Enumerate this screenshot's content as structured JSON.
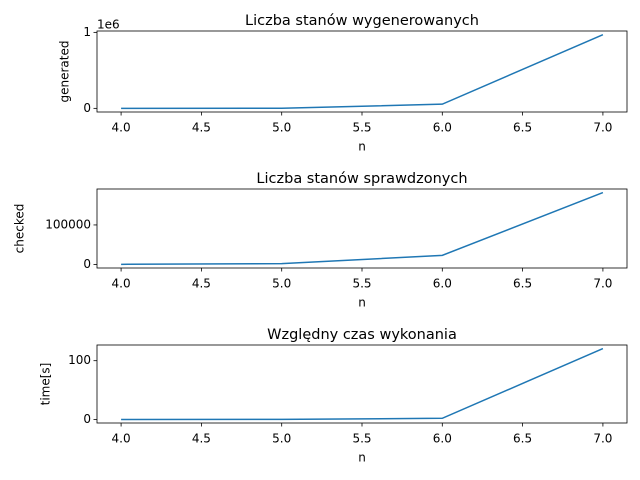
{
  "chart_data": [
    {
      "type": "line",
      "title": "Liczba stanów wygenerowanych",
      "xlabel": "n",
      "ylabel": "generated",
      "y_offset_label": "1e6",
      "x": [
        4,
        5,
        6,
        7
      ],
      "series": [
        {
          "color": "#1f77b4",
          "values": [
            100,
            1000,
            55000,
            970000
          ]
        }
      ],
      "xlim": [
        3.85,
        7.15
      ],
      "ylim": [
        -48000,
        1018000
      ],
      "xticks": [
        {
          "value": 4,
          "label": "4.0"
        },
        4.5,
        {
          "value": 5,
          "label": "5.0"
        },
        5.5,
        {
          "value": 6,
          "label": "6.0"
        },
        6.5,
        {
          "value": 7,
          "label": "7.0"
        }
      ],
      "yticks": [
        0,
        {
          "value": 1000000,
          "label": "1"
        }
      ]
    },
    {
      "type": "line",
      "title": "Liczba stanów sprawdzonych",
      "xlabel": "n",
      "ylabel": "checked",
      "x": [
        4,
        5,
        6,
        7
      ],
      "series": [
        {
          "color": "#1f77b4",
          "values": [
            300,
            2000,
            23000,
            182000
          ]
        }
      ],
      "xlim": [
        3.85,
        7.15
      ],
      "ylim": [
        -9000,
        191000
      ],
      "xticks": [
        {
          "value": 4,
          "label": "4.0"
        },
        4.5,
        {
          "value": 5,
          "label": "5.0"
        },
        5.5,
        {
          "value": 6,
          "label": "6.0"
        },
        6.5,
        {
          "value": 7,
          "label": "7.0"
        }
      ],
      "yticks": [
        0,
        100000
      ]
    },
    {
      "type": "line",
      "title": "Względny czas wykonania",
      "xlabel": "n",
      "ylabel": "time[s]",
      "x": [
        4,
        5,
        6,
        7
      ],
      "series": [
        {
          "color": "#1f77b4",
          "values": [
            0.01,
            0.2,
            2,
            120.7
          ]
        }
      ],
      "xlim": [
        3.85,
        7.15
      ],
      "ylim": [
        -6,
        126.7
      ],
      "xticks": [
        {
          "value": 4,
          "label": "4.0"
        },
        4.5,
        {
          "value": 5,
          "label": "5.0"
        },
        5.5,
        {
          "value": 6,
          "label": "6.0"
        },
        6.5,
        {
          "value": 7,
          "label": "7.0"
        }
      ],
      "yticks": [
        0,
        100
      ]
    }
  ]
}
